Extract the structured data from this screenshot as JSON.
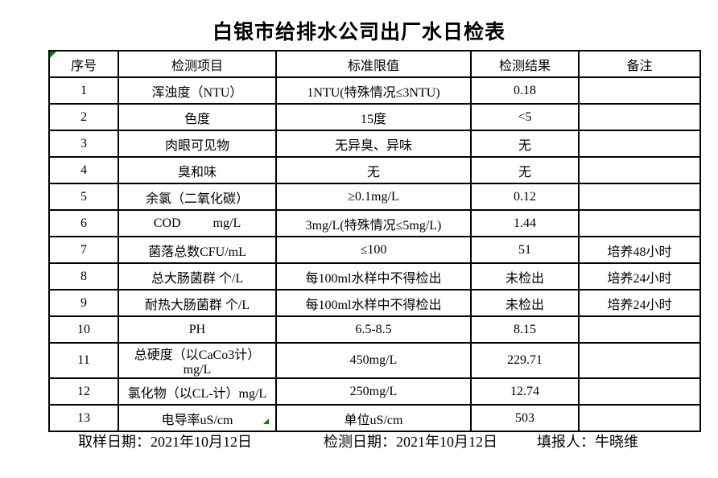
{
  "title": "白银市给排水公司出厂水日检表",
  "colors": {
    "border": "#000000",
    "text": "#000000",
    "marker_green": "#008000",
    "background": "#ffffff"
  },
  "table": {
    "headers": [
      "序号",
      "检测项目",
      "标准限值",
      "检测结果",
      "备注"
    ],
    "rows": [
      {
        "no": "1",
        "item": "浑浊度（NTU）",
        "limit": "1NTU(特殊情况≤3NTU)",
        "result": "0.18",
        "note": ""
      },
      {
        "no": "2",
        "item": "色度",
        "limit": "15度",
        "result": "<5",
        "note": ""
      },
      {
        "no": "3",
        "item": "肉眼可见物",
        "limit": "无异臭、异味",
        "result": "无",
        "note": ""
      },
      {
        "no": "4",
        "item": "臭和味",
        "limit": "无",
        "result": "无",
        "note": ""
      },
      {
        "no": "5",
        "item": "余氯（二氧化碳）",
        "limit": "≥0.1mg/L",
        "result": "0.12",
        "note": ""
      },
      {
        "no": "6",
        "item": "COD          mg/L",
        "limit": "3mg/L(特殊情况≤5mg/L)",
        "result": "1.44",
        "note": ""
      },
      {
        "no": "7",
        "item": "菌落总数CFU/mL",
        "limit": "≤100",
        "result": "51",
        "note": "培养48小时"
      },
      {
        "no": "8",
        "item": "总大肠菌群 个/L",
        "limit": "每100ml水样中不得检出",
        "result": "未检出",
        "note": "培养24小时"
      },
      {
        "no": "9",
        "item": "耐热大肠菌群 个/L",
        "limit": "每100ml水样中不得检出",
        "result": "未检出",
        "note": "培养24小时"
      },
      {
        "no": "10",
        "item": "PH",
        "limit": "6.5-8.5",
        "result": "8.15",
        "note": ""
      },
      {
        "no": "11",
        "item": "总硬度（以CaCo3计）mg/L",
        "limit": "450mg/L",
        "result": "229.71",
        "note": ""
      },
      {
        "no": "12",
        "item": "氯化物（以CL-计）mg/L",
        "limit": "250mg/L",
        "result": "12.74",
        "note": ""
      },
      {
        "no": "13",
        "item": "电导率uS/cm",
        "limit": "单位uS/cm",
        "result": "503",
        "note": ""
      }
    ]
  },
  "footer": {
    "sampling_date": "取样日期：2021年10月12日",
    "test_date": "检测日期：2021年10月12日",
    "reporter": "填报人：牛晓维"
  }
}
